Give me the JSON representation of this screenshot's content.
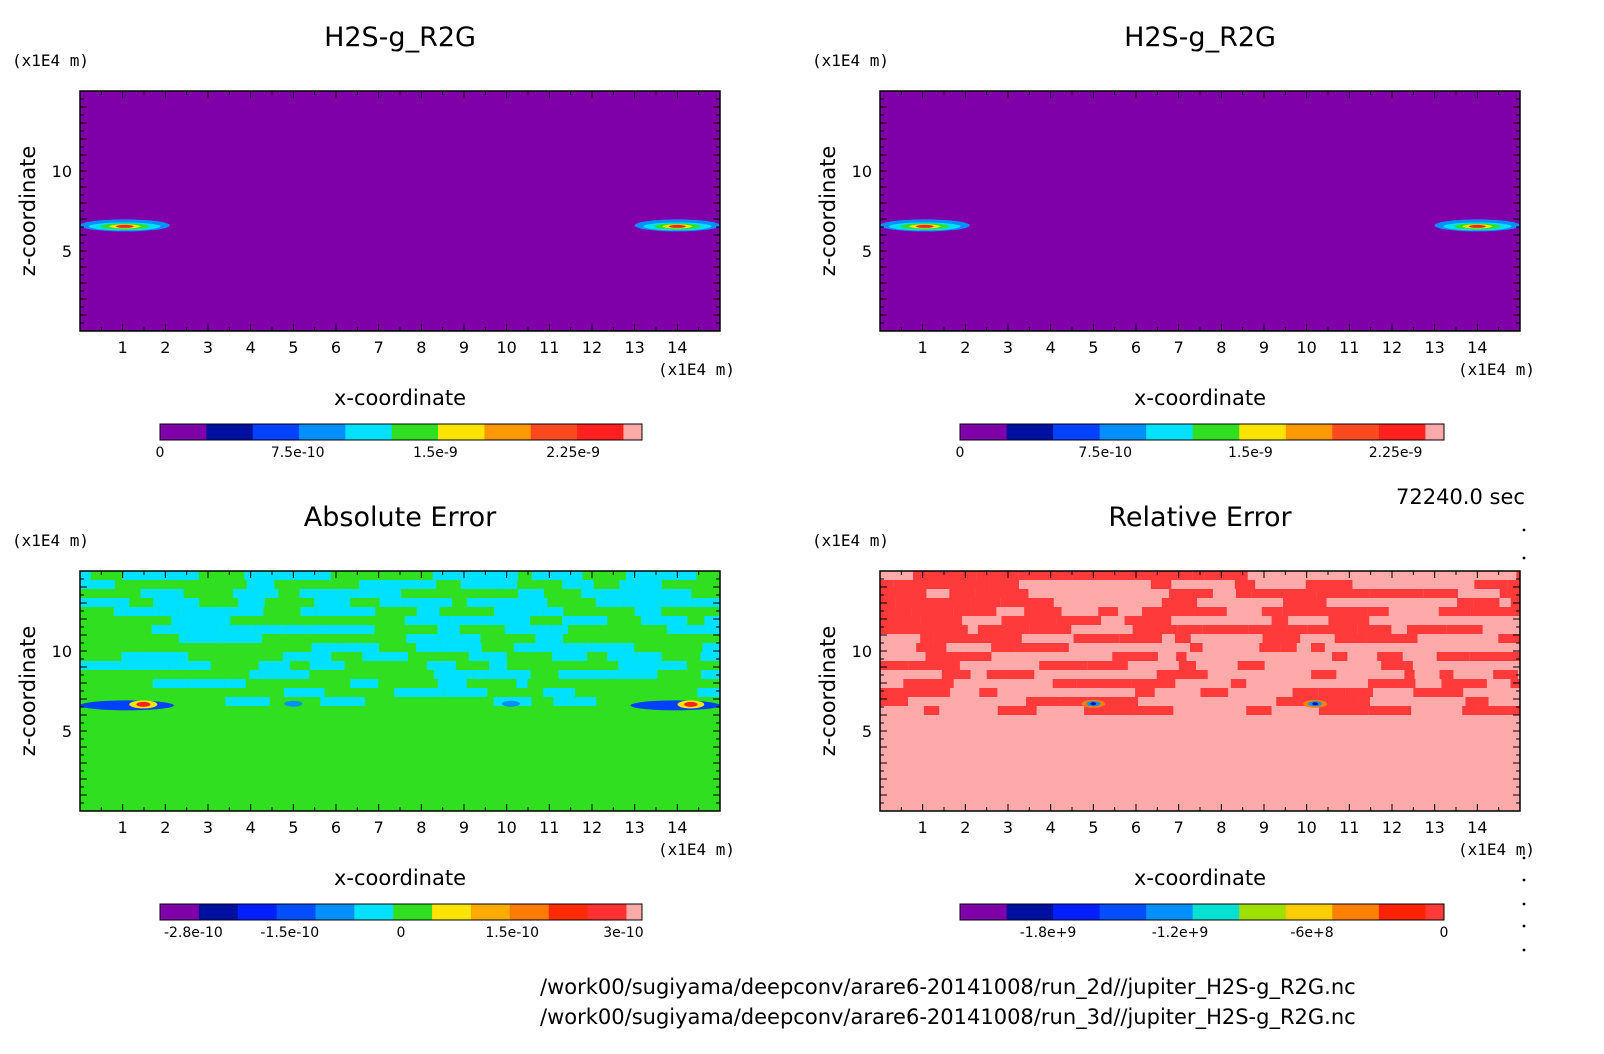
{
  "chart_data": [
    {
      "type": "heatmap",
      "title": "H2S-g_R2G",
      "xlabel": "x-coordinate",
      "ylabel": "z-coordinate",
      "x_unit": "(x1E4 m)",
      "y_unit": "(x1E4 m)",
      "xlim": [
        0,
        15
      ],
      "ylim": [
        0,
        15
      ],
      "xticks": [
        "1",
        "2",
        "3",
        "4",
        "5",
        "6",
        "7",
        "8",
        "9",
        "10",
        "11",
        "12",
        "13",
        "14"
      ],
      "yticks": [
        "5",
        "10"
      ],
      "background_level": 0,
      "features": [
        {
          "x_range": [
            0,
            2.1
          ],
          "z": 6.6,
          "peak": 2.2e-09
        },
        {
          "x_range": [
            13.0,
            15
          ],
          "z": 6.6,
          "peak": 2.2e-09
        }
      ],
      "colorbar": {
        "colors": [
          "#7f00a8",
          "#0010a0",
          "#0040ff",
          "#0090ff",
          "#00e0ff",
          "#30e020",
          "#ffe400",
          "#ff9800",
          "#ff4a20",
          "#ff2020",
          "#ffaaaa"
        ],
        "range": [
          0,
          2.625e-09
        ],
        "tick_labels": [
          "0",
          "7.5e-10",
          "1.5e-9",
          "2.25e-9"
        ],
        "tick_values": [
          0,
          7.5e-10,
          1.5e-09,
          2.25e-09
        ]
      }
    },
    {
      "type": "heatmap",
      "title": "H2S-g_R2G",
      "xlabel": "x-coordinate",
      "ylabel": "z-coordinate",
      "x_unit": "(x1E4 m)",
      "y_unit": "(x1E4 m)",
      "xlim": [
        0,
        15
      ],
      "ylim": [
        0,
        15
      ],
      "xticks": [
        "1",
        "2",
        "3",
        "4",
        "5",
        "6",
        "7",
        "8",
        "9",
        "10",
        "11",
        "12",
        "13",
        "14"
      ],
      "yticks": [
        "5",
        "10"
      ],
      "background_level": 0,
      "features": [
        {
          "x_range": [
            0,
            2.1
          ],
          "z": 6.6,
          "peak": 2.2e-09
        },
        {
          "x_range": [
            13.0,
            15
          ],
          "z": 6.6,
          "peak": 2.2e-09
        }
      ],
      "colorbar": {
        "colors": [
          "#7f00a8",
          "#0010a0",
          "#0040ff",
          "#0090ff",
          "#00e0ff",
          "#30e020",
          "#ffe400",
          "#ff9800",
          "#ff4a20",
          "#ff2020",
          "#ffaaaa"
        ],
        "range": [
          0,
          2.5e-09
        ],
        "tick_labels": [
          "0",
          "7.5e-10",
          "1.5e-9",
          "2.25e-9"
        ],
        "tick_values": [
          0,
          7.5e-10,
          1.5e-09,
          2.25e-09
        ]
      }
    },
    {
      "type": "heatmap",
      "title": "Absolute Error",
      "xlabel": "x-coordinate",
      "ylabel": "z-coordinate",
      "x_unit": "(x1E4 m)",
      "y_unit": "(x1E4 m)",
      "xlim": [
        0,
        15
      ],
      "ylim": [
        0,
        15
      ],
      "xticks": [
        "1",
        "2",
        "3",
        "4",
        "5",
        "6",
        "7",
        "8",
        "9",
        "10",
        "11",
        "12",
        "13",
        "14"
      ],
      "yticks": [
        "5",
        "10"
      ],
      "background_level": 0,
      "features": [
        {
          "x_range": [
            0,
            2.2
          ],
          "z": 6.6,
          "peak": 2.5e-10
        },
        {
          "x_range": [
            12.9,
            15
          ],
          "z": 6.6,
          "peak": 2.5e-10
        }
      ],
      "colorbar": {
        "colors": [
          "#7f00a8",
          "#0010a0",
          "#0020ff",
          "#0050ff",
          "#0090ff",
          "#00e0ff",
          "#30e020",
          "#ffe400",
          "#ffaa00",
          "#ff7a00",
          "#ff2a00",
          "#ff3030",
          "#ffaaaa"
        ],
        "range": [
          -3.25e-10,
          3.25e-10
        ],
        "tick_labels": [
          "-2.8e-10",
          "-1.5e-10",
          "0",
          "1.5e-10",
          "3e-10"
        ],
        "tick_values": [
          -2.8e-10,
          -1.5e-10,
          0,
          1.5e-10,
          3e-10
        ]
      }
    },
    {
      "type": "heatmap",
      "title": "Relative Error",
      "xlabel": "x-coordinate",
      "ylabel": "z-coordinate",
      "x_unit": "(x1E4 m)",
      "y_unit": "(x1E4 m)",
      "xlim": [
        0,
        15
      ],
      "ylim": [
        0,
        15
      ],
      "xticks": [
        "1",
        "2",
        "3",
        "4",
        "5",
        "6",
        "7",
        "8",
        "9",
        "10",
        "11",
        "12",
        "13",
        "14"
      ],
      "yticks": [
        "5",
        "10"
      ],
      "background_level": 0,
      "features": [
        {
          "x_range": [
            4.6,
            5.4
          ],
          "z": 6.7,
          "peak": -2000000000.0
        },
        {
          "x_range": [
            9.8,
            10.6
          ],
          "z": 6.7,
          "peak": -2000000000.0
        }
      ],
      "colorbar": {
        "colors": [
          "#7f00a8",
          "#0010a0",
          "#0020ff",
          "#0050ff",
          "#0090ff",
          "#00e0d0",
          "#a0e000",
          "#ffcc00",
          "#ff8000",
          "#ff2000",
          "#ff3a3a"
        ],
        "range": [
          -2200000000.0,
          0
        ],
        "tick_labels": [
          "-1.8e+9",
          "-1.2e+9",
          "-6e+8",
          "0"
        ],
        "tick_values": [
          -1800000000.0,
          -1200000000.0,
          -600000000.0,
          0
        ]
      }
    }
  ],
  "time_label": "72240.0 sec",
  "source_files": [
    "/work00/sugiyama/deepconv/arare6-20141008/run_2d//jupiter_H2S-g_R2G.nc",
    "/work00/sugiyama/deepconv/arare6-20141008/run_3d//jupiter_H2S-g_R2G.nc"
  ]
}
